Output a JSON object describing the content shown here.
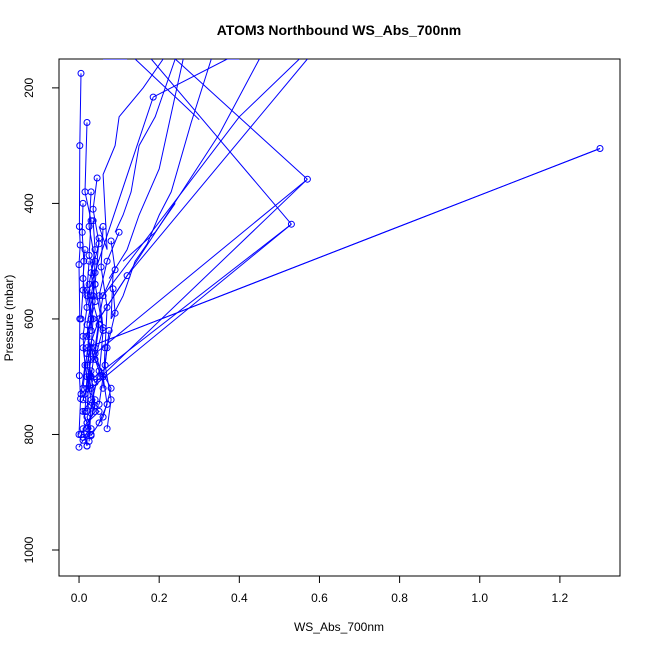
{
  "chart_data": {
    "type": "line",
    "title": "ATOM3 Northbound WS_Abs_700nm",
    "xlabel": "WS_Abs_700nm",
    "ylabel": "Pressure (mbar)",
    "xlim": [
      -0.05,
      1.35
    ],
    "ylim": [
      1045,
      150
    ],
    "y_reversed": true,
    "x_ticks": [
      "0.0",
      "0.2",
      "0.4",
      "0.6",
      "0.8",
      "1.0",
      "1.2"
    ],
    "x_tick_values": [
      0,
      0.2,
      0.4,
      0.6,
      0.8,
      1.0,
      1.2
    ],
    "y_ticks": [
      "200",
      "400",
      "600",
      "800",
      "1000"
    ],
    "y_tick_values": [
      200,
      400,
      600,
      800,
      1000
    ],
    "grid": false,
    "series_color": "#0000ff",
    "series": [
      {
        "x": [
          1.3,
          0.02,
          0.03,
          0.01,
          0.05,
          0.02,
          0.03,
          0.01,
          0.0
        ],
        "y": [
          305,
          650,
          700,
          740,
          760,
          780,
          800,
          810,
          822
        ]
      },
      {
        "x": [
          0.57,
          0.04,
          0.03,
          0.02,
          0.04,
          0.02,
          0.03,
          0.01
        ],
        "y": [
          358,
          710,
          690,
          720,
          740,
          770,
          790,
          805
        ]
      },
      {
        "x": [
          0.53,
          0.03,
          0.02,
          0.03,
          0.01,
          0.02,
          0.005
        ],
        "y": [
          436,
          720,
          700,
          740,
          760,
          780,
          800
        ]
      },
      {
        "x": [
          0.185,
          0.02,
          0.03,
          0.01,
          0.02,
          0.015
        ],
        "y": [
          216,
          560,
          600,
          650,
          700,
          760
        ]
      },
      {
        "x": [
          0.12,
          0.05,
          0.03,
          0.02,
          0.03,
          0.04,
          0.01,
          0.02
        ],
        "y": [
          525,
          600,
          640,
          680,
          720,
          760,
          790,
          820
        ]
      },
      {
        "x": [
          0.08,
          0.09,
          0.06,
          0.05,
          0.04,
          0.03,
          0.04,
          0.02,
          0.02
        ],
        "y": [
          465,
          515,
          560,
          600,
          650,
          700,
          750,
          790,
          820
        ]
      },
      {
        "x": [
          0.1,
          0.07,
          0.05,
          0.06,
          0.04,
          0.08,
          0.06,
          0.03
        ],
        "y": [
          450,
          500,
          560,
          615,
          670,
          720,
          770,
          802
        ]
      },
      {
        "x": [
          0.045,
          0.035,
          0.05,
          0.03,
          0.04,
          0.02,
          0.05,
          0.03,
          0.025
        ],
        "y": [
          356,
          410,
          470,
          520,
          570,
          630,
          690,
          750,
          812
        ]
      },
      {
        "x": [
          0.005,
          0.002,
          0.001,
          0.003,
          0.0,
          0.002,
          0.001,
          0.004,
          0.0
        ],
        "y": [
          175,
          300,
          440,
          472,
          506,
          600,
          698,
          738,
          800
        ]
      },
      {
        "x": [
          0.02,
          0.015,
          0.03,
          0.025,
          0.04,
          0.02,
          0.03,
          0.015
        ],
        "y": [
          260,
          380,
          430,
          490,
          540,
          610,
          670,
          730
        ]
      },
      {
        "x": [
          0.085,
          0.09,
          0.07,
          0.06,
          0.07,
          0.05
        ],
        "y": [
          548,
          590,
          650,
          700,
          748,
          780
        ]
      },
      {
        "x": [
          0.035,
          0.04,
          0.025,
          0.03,
          0.02,
          0.01
        ],
        "y": [
          430,
          480,
          540,
          600,
          660,
          720
        ]
      },
      {
        "x": [
          0.04,
          0.03,
          0.05,
          0.04,
          0.06,
          0.05
        ],
        "y": [
          520,
          560,
          610,
          660,
          700,
          748
        ]
      },
      {
        "x": [
          0.015,
          0.01,
          0.02,
          0.01,
          0.015,
          0.005
        ],
        "y": [
          480,
          530,
          580,
          630,
          680,
          730
        ]
      },
      {
        "x": [
          0.025,
          0.02,
          0.035,
          0.03,
          0.025,
          0.02
        ],
        "y": [
          500,
          550,
          600,
          650,
          700,
          760
        ]
      },
      {
        "x": [
          0.01,
          0.008,
          0.012,
          0.01,
          0.005
        ],
        "y": [
          400,
          450,
          500,
          550,
          600
        ]
      },
      {
        "x": [
          0.06,
          0.055,
          0.07,
          0.065,
          0.06
        ],
        "y": [
          440,
          510,
          580,
          650,
          720
        ]
      },
      {
        "x": [
          0.075,
          0.065,
          0.08,
          0.07
        ],
        "y": [
          620,
          680,
          740,
          790
        ]
      },
      {
        "x": [
          0.03,
          0.025,
          0.04,
          0.035,
          0.03
        ],
        "y": [
          380,
          440,
          500,
          560,
          620
        ]
      },
      {
        "x": [
          0.05,
          0.04,
          0.06,
          0.05
        ],
        "y": [
          460,
          540,
          620,
          700
        ]
      }
    ],
    "spikes": [
      {
        "x": [
          0.06,
          0.1,
          0.12
        ],
        "y": [
          150,
          150,
          150
        ]
      },
      {
        "x": [
          0.085,
          0.08,
          0.11,
          0.14,
          0.17,
          0.2,
          0.23,
          0.28,
          0.33
        ],
        "y": [
          520,
          600,
          560,
          500,
          470,
          420,
          380,
          260,
          150
        ]
      },
      {
        "x": [
          0.05,
          0.07,
          0.06,
          0.09,
          0.1,
          0.16,
          0.21
        ],
        "y": [
          440,
          480,
          350,
          300,
          250,
          200,
          150
        ]
      },
      {
        "x": [
          0.09,
          0.11,
          0.13,
          0.15,
          0.19,
          0.24
        ],
        "y": [
          450,
          420,
          380,
          300,
          250,
          150
        ]
      },
      {
        "x": [
          0.11,
          0.19,
          0.24
        ],
        "y": [
          500,
          450,
          400
        ]
      },
      {
        "x": [
          0.075,
          0.12,
          0.15,
          0.2,
          0.26
        ],
        "y": [
          530,
          480,
          420,
          340,
          150
        ]
      },
      {
        "x": [
          0.37,
          0.4
        ],
        "y": [
          150,
          150
        ]
      }
    ],
    "extra_segments": [
      {
        "x": [
          0.185,
          0.37
        ],
        "y": [
          216,
          150
        ]
      },
      {
        "x": [
          0.14,
          0.27,
          0.3
        ],
        "y": [
          150,
          235,
          255
        ]
      },
      {
        "x": [
          0.12,
          0.57
        ],
        "y": [
          525,
          150
        ]
      },
      {
        "x": [
          0.04,
          0.57
        ],
        "y": [
          660,
          358
        ]
      },
      {
        "x": [
          0.02,
          1.3
        ],
        "y": [
          650,
          305
        ]
      },
      {
        "x": [
          0.03,
          0.53
        ],
        "y": [
          705,
          436
        ]
      },
      {
        "x": [
          0.06,
          0.4,
          0.55
        ],
        "y": [
          560,
          250,
          150
        ]
      },
      {
        "x": [
          0.05,
          0.35,
          0.45
        ],
        "y": [
          600,
          280,
          150
        ]
      },
      {
        "x": [
          0.18,
          0.53
        ],
        "y": [
          150,
          436
        ]
      },
      {
        "x": [
          0.24,
          0.57
        ],
        "y": [
          150,
          358
        ]
      }
    ]
  }
}
